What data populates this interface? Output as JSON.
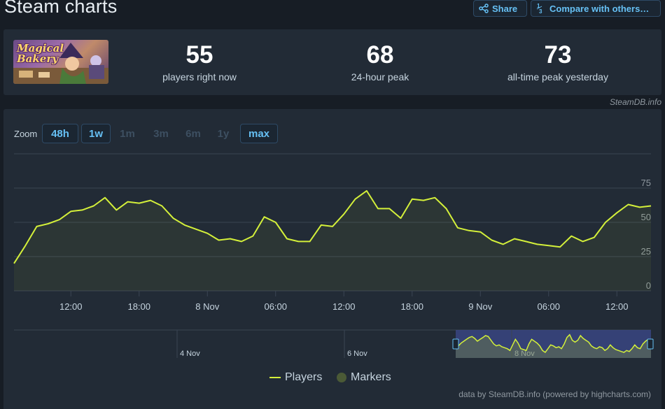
{
  "page": {
    "title": "Steam charts",
    "share_label": "Share",
    "compare_label": "Compare with others…",
    "compare_icon_text": "1/3"
  },
  "game": {
    "logo_text": "Magical Bakery"
  },
  "stats": [
    {
      "value": "55",
      "label": "players right now"
    },
    {
      "value": "68",
      "label": "24-hour peak"
    },
    {
      "value": "73",
      "label": "all-time peak yesterday"
    }
  ],
  "credit_top": "SteamDB.info",
  "zoom": {
    "label": "Zoom",
    "buttons": [
      {
        "label": "48h",
        "active": true
      },
      {
        "label": "1w",
        "active": true
      },
      {
        "label": "1m",
        "active": false
      },
      {
        "label": "3m",
        "active": false
      },
      {
        "label": "6m",
        "active": false
      },
      {
        "label": "1y",
        "active": false
      },
      {
        "label": "max",
        "active": true
      }
    ]
  },
  "legend": {
    "players": "Players",
    "markers": "Markers"
  },
  "credit_bottom": "data by SteamDB.info (powered by highcharts.com)",
  "colors": {
    "accent": "#66c0f4",
    "series": "#d4f03a",
    "marker": "#4b5a36",
    "panel": "#222b36",
    "background": "#171d25"
  },
  "chart_data": {
    "type": "line",
    "series": [
      {
        "name": "Players",
        "values": [
          20,
          33,
          47,
          49,
          52,
          58,
          59,
          62,
          68,
          59,
          65,
          64,
          66,
          62,
          53,
          48,
          45,
          42,
          37,
          38,
          36,
          40,
          54,
          50,
          38,
          36,
          36,
          48,
          47,
          56,
          67,
          73,
          60,
          60,
          53,
          67,
          66,
          68,
          60,
          46,
          44,
          43,
          37,
          34,
          38,
          36,
          34,
          33,
          32,
          40,
          36,
          39,
          50,
          57,
          63,
          61,
          62
        ]
      }
    ],
    "x_start_hour": 7,
    "x_step_hours": 1,
    "x_tick_labels": [
      {
        "hour": 12,
        "label": "12:00"
      },
      {
        "hour": 18,
        "label": "18:00"
      },
      {
        "hour": 24,
        "label": "8 Nov"
      },
      {
        "hour": 30,
        "label": "06:00"
      },
      {
        "hour": 36,
        "label": "12:00"
      },
      {
        "hour": 42,
        "label": "18:00"
      },
      {
        "hour": 48,
        "label": "9 Nov"
      },
      {
        "hour": 54,
        "label": "06:00"
      },
      {
        "hour": 60,
        "label": "12:00"
      }
    ],
    "y_ticks": [
      0,
      25,
      50,
      75
    ],
    "ylim": [
      0,
      100
    ],
    "grid": true,
    "legend_position": "bottom-center",
    "navigator": {
      "labels": [
        "4 Nov",
        "6 Nov",
        "8 Nov"
      ],
      "values": [
        40,
        43,
        46,
        48,
        50,
        52,
        53,
        51,
        48,
        50,
        52,
        54,
        53,
        49,
        45,
        43,
        44,
        42,
        41,
        40,
        38,
        44,
        50,
        46,
        40,
        39,
        38,
        45,
        50,
        48,
        46,
        43,
        38,
        36,
        40,
        44,
        43,
        41,
        42,
        40,
        45,
        52,
        55,
        49,
        47,
        49,
        54,
        51,
        49,
        47,
        43,
        41,
        40,
        42,
        41,
        38,
        40,
        44,
        41,
        39,
        38,
        37,
        36,
        38,
        37,
        40,
        44,
        41,
        40,
        45,
        48,
        50,
        47
      ]
    }
  }
}
